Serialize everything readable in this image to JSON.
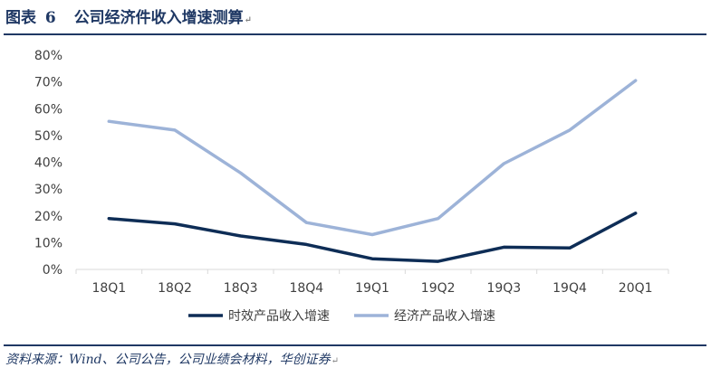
{
  "caption": {
    "label": "图表",
    "number": "6",
    "title": "公司经济件收入增速测算",
    "mark": "↵"
  },
  "source": {
    "text": "资料来源：Wind、公司公告，公司业绩会材料，华创证券",
    "mark": "↵"
  },
  "colors": {
    "accent": "#1f3864",
    "series_dark": "#0e2d56",
    "series_light": "#9db3d8",
    "axis": "#d9d9d9"
  },
  "chart_data": {
    "type": "line",
    "categories": [
      "18Q1",
      "18Q2",
      "18Q3",
      "18Q4",
      "19Q1",
      "19Q2",
      "19Q3",
      "19Q4",
      "20Q1"
    ],
    "y_ticks": [
      "0%",
      "10%",
      "20%",
      "30%",
      "40%",
      "50%",
      "60%",
      "70%",
      "80%"
    ],
    "ylim": [
      0,
      80
    ],
    "grid": false,
    "legend_position": "bottom",
    "series": [
      {
        "name": "时效产品收入增速",
        "color": "#0e2d56",
        "values": [
          19,
          17,
          12.5,
          9.3,
          4,
          3,
          8.3,
          8,
          21
        ]
      },
      {
        "name": "经济产品收入增速",
        "color": "#9db3d8",
        "values": [
          55.3,
          52,
          36,
          17.5,
          13,
          19,
          39.5,
          52,
          70.5
        ]
      }
    ]
  }
}
